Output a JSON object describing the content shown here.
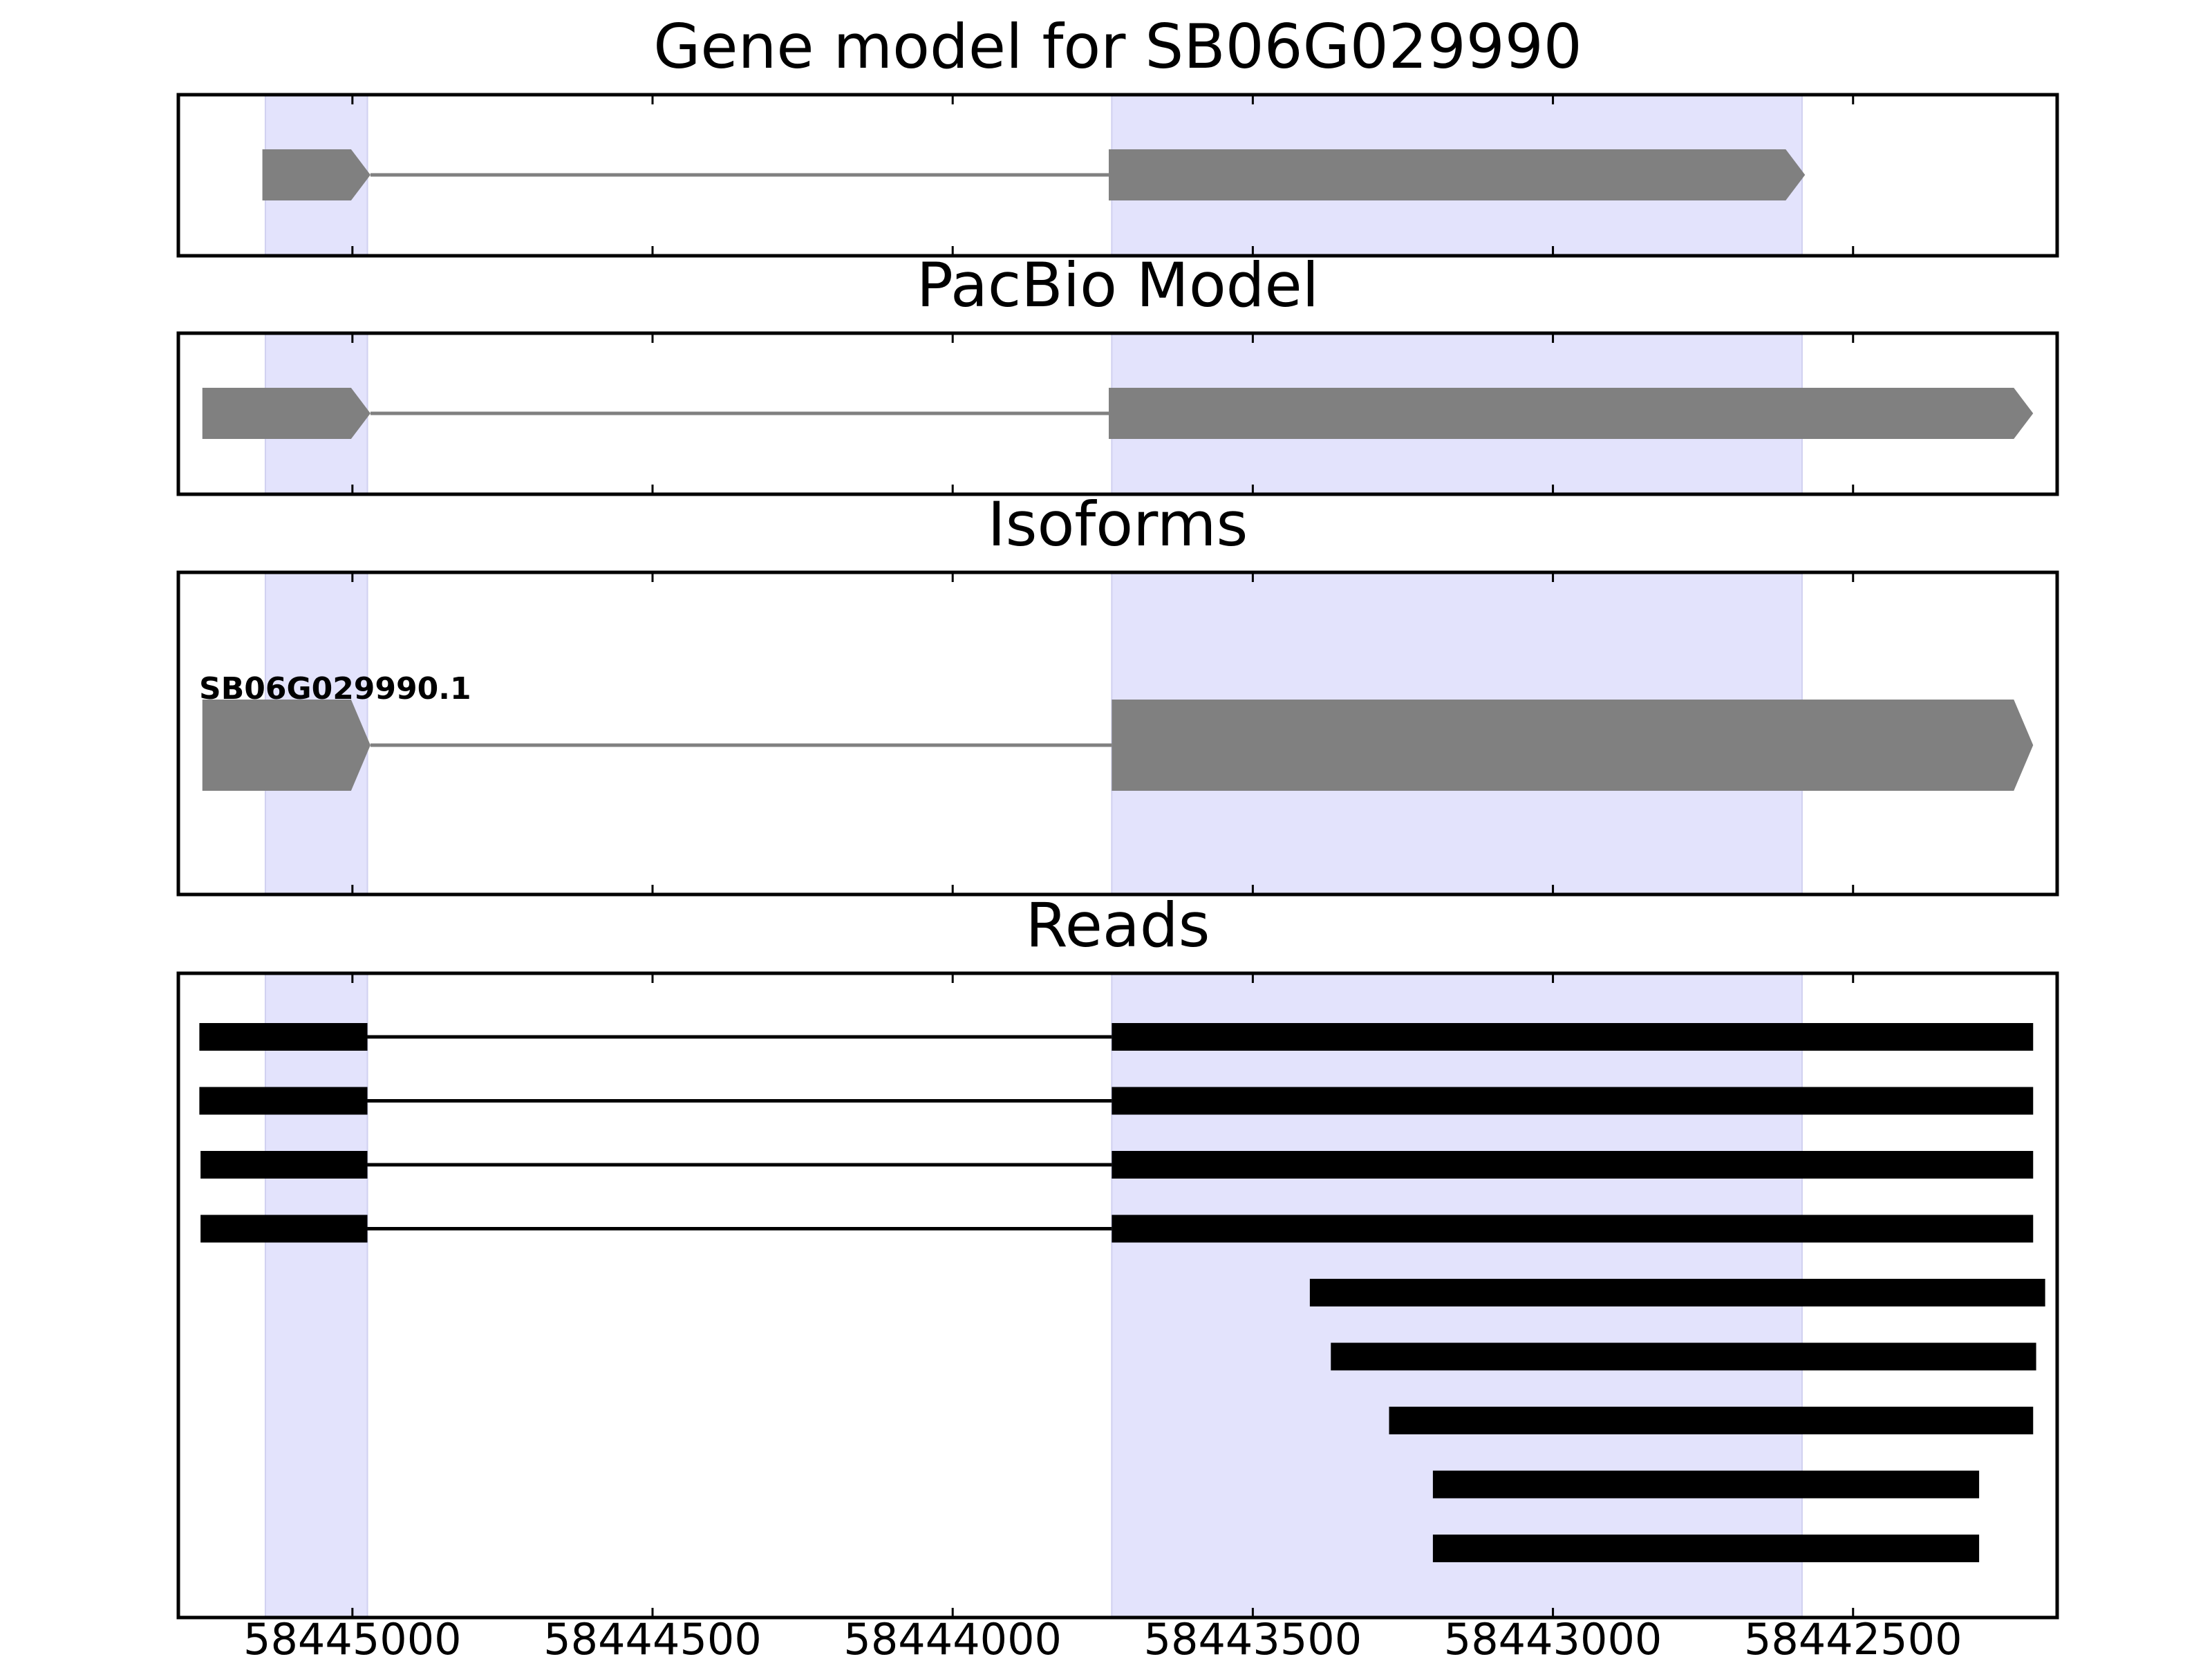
{
  "chart_data": {
    "type": "gene-track",
    "x_axis": {
      "reversed": true,
      "range": [
        58445290,
        58442160
      ],
      "ticks": [
        58445000,
        58444500,
        58444000,
        58443500,
        58443000,
        58442500
      ],
      "tick_labels": [
        "58445000",
        "58444500",
        "58444000",
        "58443500",
        "58443000",
        "58442500"
      ]
    },
    "highlight_regions": [
      [
        58445145,
        58444975
      ],
      [
        58443735,
        58442585
      ]
    ],
    "highlight_color": "#e3e3fc",
    "feature_color": "#808080",
    "read_color": "#000000",
    "panels": [
      {
        "title": "Gene model for SB06G029990",
        "features": [
          {
            "exons": [
              [
                58445150,
                58444970
              ],
              [
                58443740,
                58442580
              ]
            ],
            "strand": "-"
          }
        ]
      },
      {
        "title": "PacBio Model",
        "features": [
          {
            "exons": [
              [
                58445250,
                58444970
              ],
              [
                58443740,
                58442200
              ]
            ],
            "strand": "-"
          }
        ]
      },
      {
        "title": "Isoforms",
        "features": [
          {
            "name": "SB06G029990.1",
            "exons": [
              [
                58445250,
                58444970
              ],
              [
                58443735,
                58442200
              ]
            ],
            "strand": "-"
          }
        ]
      },
      {
        "title": "Reads",
        "reads": [
          [
            [
              58445255,
              58444975
            ],
            [
              58443735,
              58442200
            ]
          ],
          [
            [
              58445255,
              58444975
            ],
            [
              58443735,
              58442200
            ]
          ],
          [
            [
              58445253,
              58444975
            ],
            [
              58443735,
              58442200
            ]
          ],
          [
            [
              58445253,
              58444975
            ],
            [
              58443735,
              58442200
            ]
          ],
          [
            [
              58443405,
              58442180
            ]
          ],
          [
            [
              58443370,
              58442195
            ]
          ],
          [
            [
              58443273,
              58442200
            ]
          ],
          [
            [
              58443200,
              58442290
            ]
          ],
          [
            [
              58443200,
              58442290
            ]
          ]
        ]
      }
    ]
  }
}
